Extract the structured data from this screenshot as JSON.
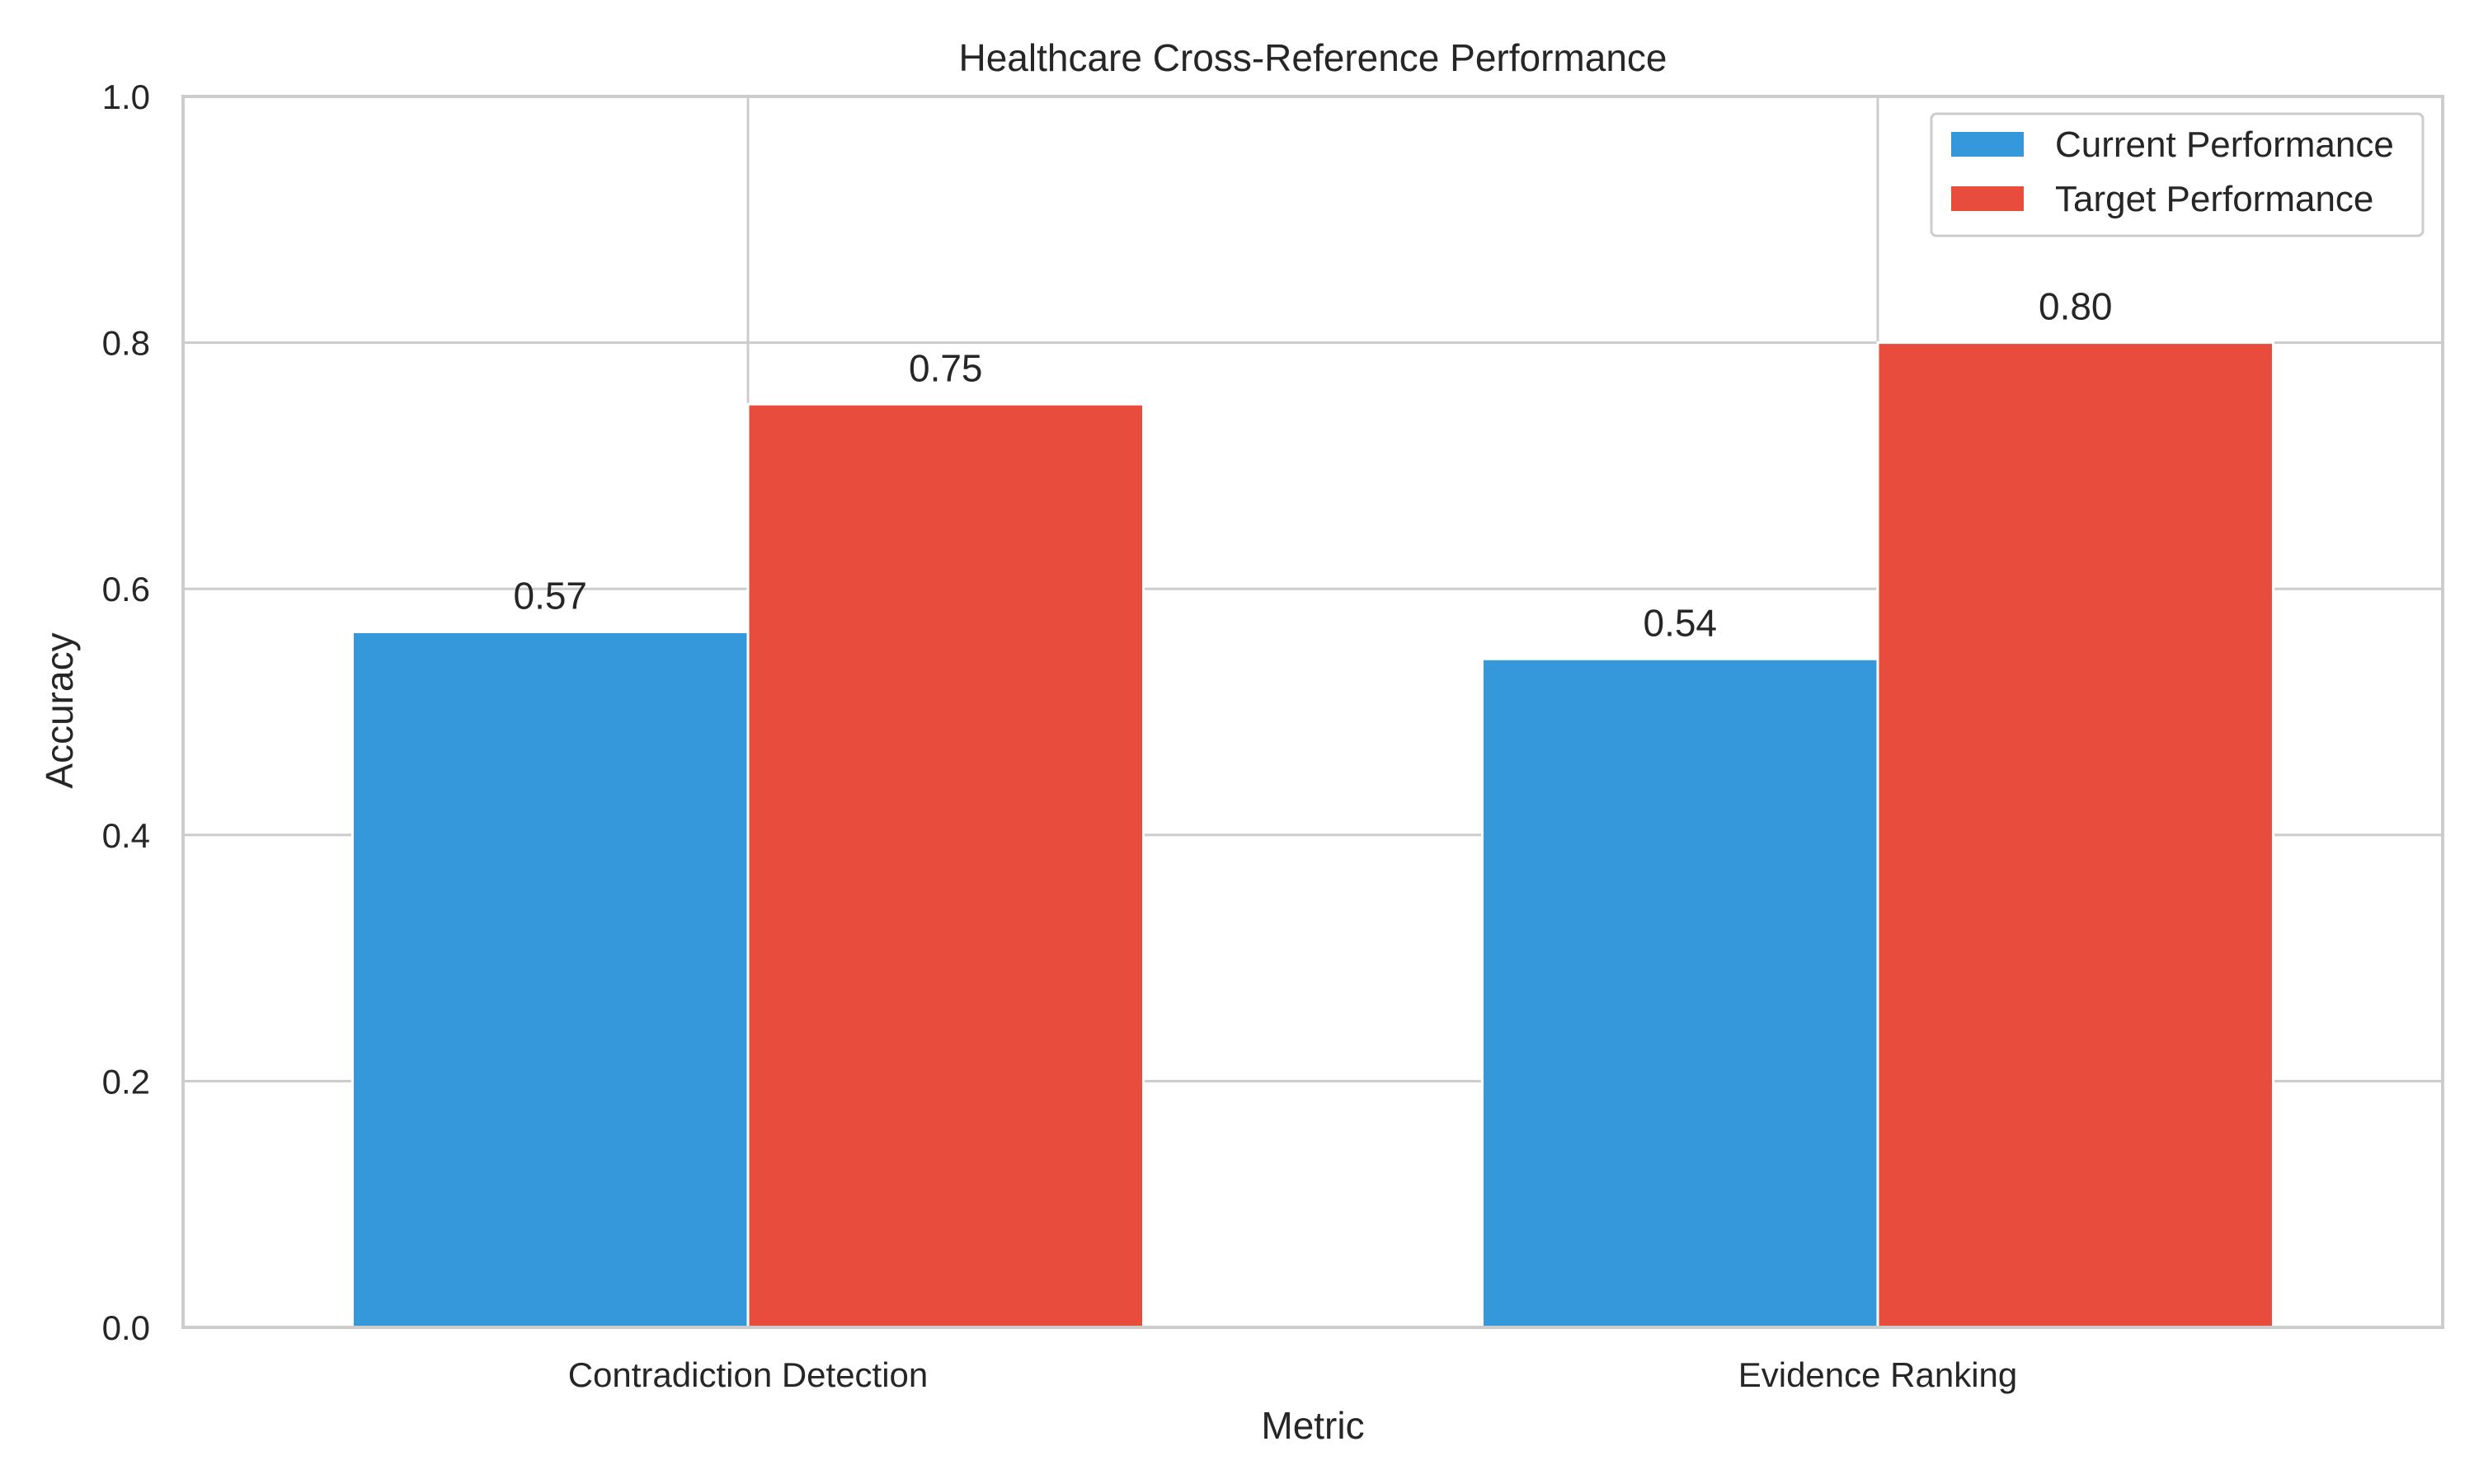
{
  "chart_data": {
    "type": "bar",
    "title": "Healthcare Cross-Reference Performance",
    "xlabel": "Metric",
    "ylabel": "Accuracy",
    "categories": [
      "Contradiction Detection",
      "Evidence Ranking"
    ],
    "series": [
      {
        "name": "Current Performance",
        "color": "#3498db",
        "values": [
          0.565,
          0.543
        ],
        "labels": [
          "0.57",
          "0.54"
        ]
      },
      {
        "name": "Target Performance",
        "color": "#e74c3c",
        "values": [
          0.75,
          0.8
        ],
        "labels": [
          "0.75",
          "0.80"
        ]
      }
    ],
    "ylim": [
      0,
      1.0
    ],
    "yticks": [
      0.0,
      0.2,
      0.4,
      0.6,
      0.8,
      1.0
    ],
    "ytick_labels": [
      "0.0",
      "0.2",
      "0.4",
      "0.6",
      "0.8",
      "1.0"
    ],
    "grid": true,
    "legend_position": "top-right"
  }
}
